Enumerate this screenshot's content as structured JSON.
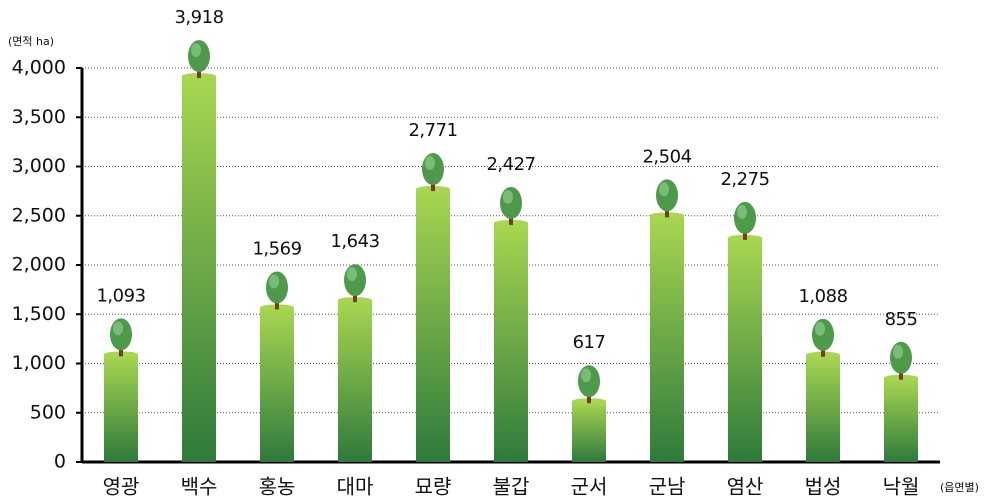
{
  "chart_data": {
    "type": "bar",
    "y_label": "(면적 ha)",
    "x_label": "(읍면별)",
    "categories": [
      "영광",
      "백수",
      "홍농",
      "대마",
      "묘량",
      "불갑",
      "군서",
      "군남",
      "염산",
      "법성",
      "낙월"
    ],
    "values": [
      1093,
      3918,
      1569,
      1643,
      2771,
      2427,
      617,
      2504,
      2275,
      1088,
      855
    ],
    "value_labels": [
      "1,093",
      "3,918",
      "1,569",
      "1,643",
      "2,771",
      "2,427",
      "617",
      "2,504",
      "2,275",
      "1,088",
      "855"
    ],
    "colors": [
      "#a8d651",
      "#2f7a3c"
    ],
    "ylim": [
      0,
      4000
    ],
    "yticks": [
      0,
      500,
      {
        "value": 1000,
        "label": "1,000"
      },
      {
        "value": 1500,
        "label": "1,500"
      },
      {
        "value": 2000,
        "label": "2,000"
      },
      {
        "value": 2500,
        "label": "2,500"
      },
      {
        "value": 3000,
        "label": "3,000"
      },
      {
        "value": 3500,
        "label": "3,500"
      },
      {
        "value": 4000,
        "label": "4,000"
      }
    ],
    "grid": true
  }
}
